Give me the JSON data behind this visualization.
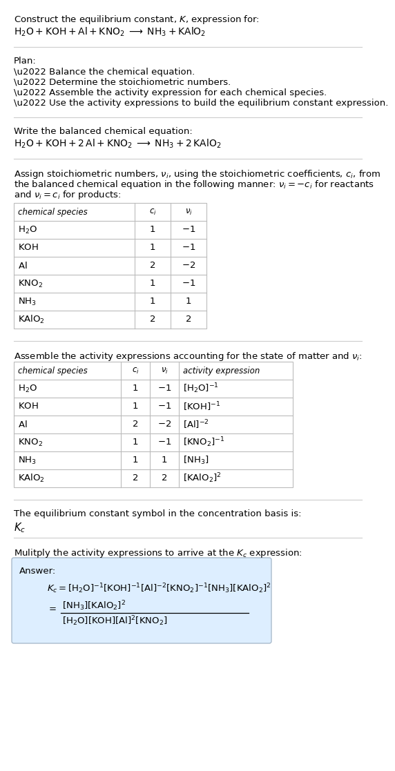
{
  "bg_color": "#ffffff",
  "text_color": "#000000",
  "table_border_color": "#bbbbbb",
  "answer_box_color": "#ddeeff",
  "answer_box_border": "#aabbcc",
  "font_size": 9.5,
  "sections": {
    "s1_title": "Construct the equilibrium constant, $K$, expression for:",
    "s1_rxn_parts": [
      "$\\mathrm{H_2O + KOH + Al + KNO_2}$",
      "$\\mathrm{NH_3 + KAlO_2}$"
    ],
    "s2_plan_header": "Plan:",
    "s2_plan_items": [
      "\\u2022 Balance the chemical equation.",
      "\\u2022 Determine the stoichiometric numbers.",
      "\\u2022 Assemble the activity expression for each chemical species.",
      "\\u2022 Use the activity expressions to build the equilibrium constant expression."
    ],
    "s3_balanced_header": "Write the balanced chemical equation:",
    "s3_rxn_parts": [
      "$\\mathrm{H_2O + KOH + 2\\,Al + KNO_2}$",
      "$\\mathrm{NH_3 + 2\\,KAlO_2}$"
    ],
    "s4_intro_lines": [
      "Assign stoichiometric numbers, $\\nu_i$, using the stoichiometric coefficients, $c_i$, from",
      "the balanced chemical equation in the following manner: $\\nu_i = -c_i$ for reactants",
      "and $\\nu_i = c_i$ for products:"
    ],
    "table1_headers": [
      "chemical species",
      "$c_i$",
      "$\\nu_i$"
    ],
    "table1_data": [
      [
        "$\\mathrm{H_2O}$",
        "1",
        "$-1$"
      ],
      [
        "$\\mathrm{KOH}$",
        "1",
        "$-1$"
      ],
      [
        "$\\mathrm{Al}$",
        "2",
        "$-2$"
      ],
      [
        "$\\mathrm{KNO_2}$",
        "1",
        "$-1$"
      ],
      [
        "$\\mathrm{NH_3}$",
        "1",
        "$1$"
      ],
      [
        "$\\mathrm{KAlO_2}$",
        "2",
        "$2$"
      ]
    ],
    "s5_activity_intro": "Assemble the activity expressions accounting for the state of matter and $\\nu_i$:",
    "table2_headers": [
      "chemical species",
      "$c_i$",
      "$\\nu_i$",
      "activity expression"
    ],
    "table2_data": [
      [
        "$\\mathrm{H_2O}$",
        "1",
        "$-1$",
        "$[\\mathrm{H_2O}]^{-1}$"
      ],
      [
        "$\\mathrm{KOH}$",
        "1",
        "$-1$",
        "$[\\mathrm{KOH}]^{-1}$"
      ],
      [
        "$\\mathrm{Al}$",
        "2",
        "$-2$",
        "$[\\mathrm{Al}]^{-2}$"
      ],
      [
        "$\\mathrm{KNO_2}$",
        "1",
        "$-1$",
        "$[\\mathrm{KNO_2}]^{-1}$"
      ],
      [
        "$\\mathrm{NH_3}$",
        "1",
        "$1$",
        "$[\\mathrm{NH_3}]$"
      ],
      [
        "$\\mathrm{KAlO_2}$",
        "2",
        "$2$",
        "$[\\mathrm{KAlO_2}]^2$"
      ]
    ],
    "s6_kc_intro": "The equilibrium constant symbol in the concentration basis is:",
    "s6_kc_symbol": "$K_c$",
    "s7_multiply_intro": "Mulitply the activity expressions to arrive at the $K_c$ expression:",
    "answer_label": "Answer:",
    "answer_kc_lhs": "$K_c = $",
    "answer_kc_rhs": "$[\\mathrm{H_2O}]^{-1}[\\mathrm{KOH}]^{-1}[\\mathrm{Al}]^{-2}[\\mathrm{KNO_2}]^{-1}[\\mathrm{NH_3}][\\mathrm{KAlO_2}]^2$",
    "answer_num": "$[\\mathrm{NH_3}][\\mathrm{KAlO_2}]^2$",
    "answer_den": "$[\\mathrm{H_2O}][\\mathrm{KOH}][\\mathrm{Al}]^2[\\mathrm{KNO_2}]$"
  }
}
